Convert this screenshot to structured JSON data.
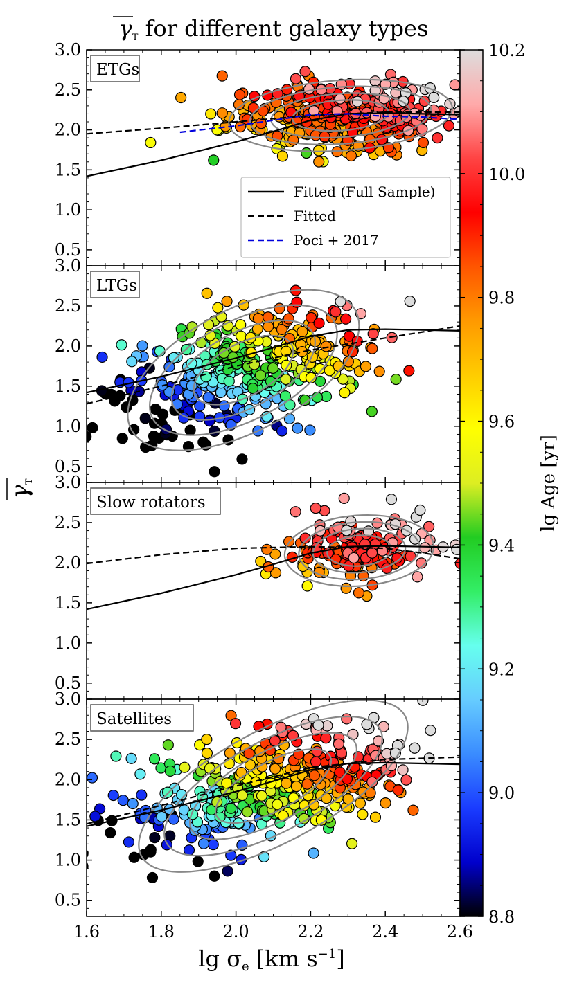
{
  "figure": {
    "title": "γ_T for different galaxy types",
    "title_symbol": "γ",
    "title_subscript": "T",
    "title_rest": " for different galaxy types",
    "xlabel_text": "lg σ",
    "xlabel_sub": "e",
    "xlabel_units": " [km s",
    "xlabel_exp": "−1",
    "xlabel_close": "]",
    "ylabel_symbol": "γ",
    "ylabel_sub": "T"
  },
  "colorbar": {
    "label": "lg Age [yr]",
    "range": [
      8.8,
      10.2
    ],
    "ticks": [
      "8.8",
      "9.0",
      "9.2",
      "9.4",
      "9.6",
      "9.8",
      "10.0",
      "10.2"
    ],
    "stops": [
      "#000000",
      "#0000cc",
      "#1a3cff",
      "#3a8cff",
      "#66ccff",
      "#66ffee",
      "#33ee66",
      "#22cc22",
      "#ddee22",
      "#ffff00",
      "#ffcc00",
      "#ff9900",
      "#ff5500",
      "#ff0000",
      "#ff4444",
      "#ffaaaa",
      "#dddddd"
    ]
  },
  "chart_data": [
    {
      "type": "scatter",
      "panel_label": "ETGs",
      "xlim": [
        1.6,
        2.6
      ],
      "ylim": [
        0.3,
        3.0
      ],
      "xticks": [
        "1.6",
        "1.8",
        "2.0",
        "2.2",
        "2.4",
        "2.6"
      ],
      "yticks": [
        "0.5",
        "1.0",
        "1.5",
        "2.0",
        "2.5",
        "3.0"
      ],
      "legend": {
        "placement": "lower-right",
        "entries": [
          {
            "label": "Fitted (Full Sample)",
            "color": "#000000",
            "dash": "solid"
          },
          {
            "label": "Fitted",
            "color": "#000000",
            "dash": "dashed"
          },
          {
            "label": "Poci + 2017",
            "color": "#0000dd",
            "dash": "dashed"
          }
        ]
      },
      "fit_full": {
        "x": [
          1.6,
          1.8,
          2.0,
          2.1,
          2.2,
          2.3,
          2.4,
          2.5,
          2.6
        ],
        "y": [
          1.42,
          1.62,
          1.85,
          1.98,
          2.12,
          2.2,
          2.21,
          2.2,
          2.19
        ]
      },
      "fit_sample": {
        "x": [
          1.6,
          1.8,
          2.0,
          2.2,
          2.4,
          2.6
        ],
        "y": [
          1.95,
          2.02,
          2.1,
          2.18,
          2.22,
          2.22
        ]
      },
      "poci2017": {
        "x": [
          1.85,
          2.0,
          2.1,
          2.2,
          2.3,
          2.4,
          2.5,
          2.6
        ],
        "y": [
          1.97,
          2.05,
          2.12,
          2.19,
          2.2,
          2.17,
          2.16,
          2.13
        ]
      },
      "cloud": {
        "x_center": 2.28,
        "x_spread": 0.15,
        "y_center": 2.18,
        "y_spread": 0.22,
        "age_mean": 9.88,
        "n": 360
      }
    },
    {
      "type": "scatter",
      "panel_label": "LTGs",
      "xlim": [
        1.6,
        2.6
      ],
      "ylim": [
        0.3,
        3.0
      ],
      "xticks": [
        "1.6",
        "1.8",
        "2.0",
        "2.2",
        "2.4",
        "2.6"
      ],
      "yticks": [
        "0.5",
        "1.0",
        "1.5",
        "2.0",
        "2.5",
        "3.0"
      ],
      "fit_full": {
        "x": [
          1.6,
          1.8,
          2.0,
          2.1,
          2.2,
          2.3,
          2.4,
          2.5,
          2.6
        ],
        "y": [
          1.42,
          1.62,
          1.85,
          1.98,
          2.12,
          2.2,
          2.21,
          2.2,
          2.19
        ]
      },
      "fit_sample": {
        "x": [
          1.6,
          1.8,
          2.0,
          2.2,
          2.4,
          2.6
        ],
        "y": [
          1.28,
          1.5,
          1.75,
          1.95,
          2.1,
          2.25
        ]
      },
      "cloud": {
        "x_center": 2.02,
        "x_spread": 0.17,
        "y_center": 1.7,
        "y_spread": 0.38,
        "age_mean": 9.3,
        "n": 420
      }
    },
    {
      "type": "scatter",
      "panel_label": "Slow rotators",
      "xlim": [
        1.6,
        2.6
      ],
      "ylim": [
        0.3,
        3.0
      ],
      "xticks": [
        "1.6",
        "1.8",
        "2.0",
        "2.2",
        "2.4",
        "2.6"
      ],
      "yticks": [
        "0.5",
        "1.0",
        "1.5",
        "2.0",
        "2.5",
        "3.0"
      ],
      "fit_full": {
        "x": [
          1.6,
          1.8,
          2.0,
          2.1,
          2.2,
          2.3,
          2.4,
          2.5,
          2.6
        ],
        "y": [
          1.42,
          1.62,
          1.85,
          1.98,
          2.12,
          2.2,
          2.21,
          2.2,
          2.19
        ]
      },
      "fit_sample": {
        "x": [
          1.6,
          1.8,
          2.0,
          2.2,
          2.4,
          2.5,
          2.6
        ],
        "y": [
          1.99,
          2.1,
          2.18,
          2.2,
          2.18,
          2.12,
          2.05
        ]
      },
      "cloud": {
        "x_center": 2.33,
        "x_spread": 0.1,
        "y_center": 2.15,
        "y_spread": 0.22,
        "age_mean": 9.93,
        "n": 150
      }
    },
    {
      "type": "scatter",
      "panel_label": "Satellites",
      "xlim": [
        1.6,
        2.6
      ],
      "ylim": [
        0.3,
        3.0
      ],
      "xticks": [
        "1.6",
        "1.8",
        "2.0",
        "2.2",
        "2.4",
        "2.6"
      ],
      "yticks": [
        "0.5",
        "1.0",
        "1.5",
        "2.0",
        "2.5",
        "3.0"
      ],
      "fit_full": {
        "x": [
          1.6,
          1.8,
          2.0,
          2.1,
          2.2,
          2.3,
          2.4,
          2.5,
          2.6
        ],
        "y": [
          1.42,
          1.62,
          1.85,
          1.98,
          2.12,
          2.2,
          2.21,
          2.2,
          2.19
        ]
      },
      "fit_sample": {
        "x": [
          1.6,
          1.8,
          2.0,
          2.2,
          2.4,
          2.6
        ],
        "y": [
          1.45,
          1.68,
          1.92,
          2.15,
          2.25,
          2.28
        ]
      },
      "cloud": {
        "x_center": 2.1,
        "x_spread": 0.2,
        "y_center": 1.92,
        "y_spread": 0.35,
        "age_mean": 9.55,
        "n": 420
      }
    }
  ]
}
